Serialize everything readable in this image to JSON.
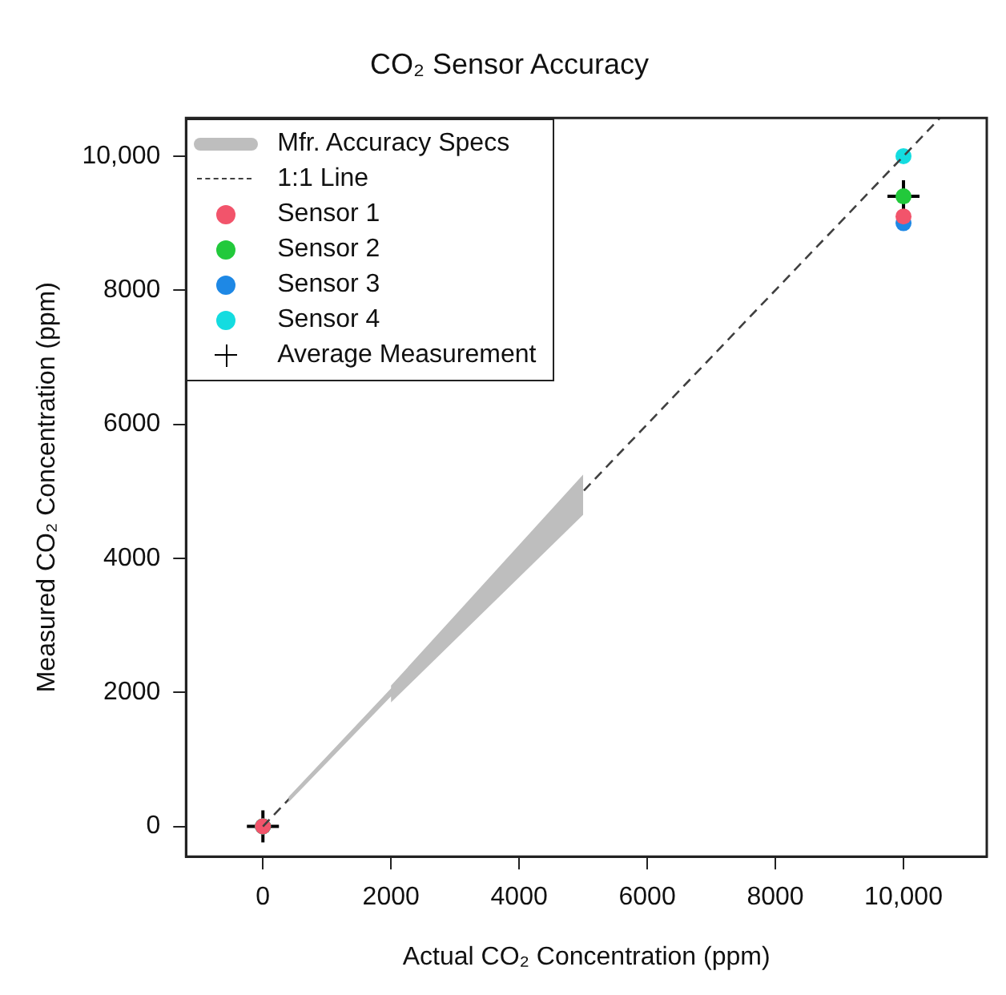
{
  "chart_data": {
    "type": "scatter",
    "title": "CO₂ Sensor Accuracy",
    "xlabel": "Actual CO₂ Concentration (ppm)",
    "ylabel": "Measured CO₂ Concentration (ppm)",
    "xlim": [
      -1200,
      11300
    ],
    "ylim": [
      -450,
      10570
    ],
    "xticks": [
      0,
      2000,
      4000,
      6000,
      8000,
      {
        "value": 10000,
        "label": "10,000"
      }
    ],
    "yticks": [
      0,
      2000,
      4000,
      6000,
      8000,
      {
        "value": 10000,
        "label": "10,000"
      }
    ],
    "grid": false,
    "legend": "top left",
    "marker": "circle",
    "series": [
      {
        "name": "Mfr. Accuracy Specs",
        "type": "line",
        "marker": "none",
        "color": "#bebebe",
        "x": [
          400,
          2000,
          2000,
          5000
        ],
        "values": [
          null,
          null,
          null,
          null
        ],
        "lower": [
          360,
          1940,
          1850,
          4650
        ],
        "upper": [
          440,
          2060,
          2100,
          5250
        ]
      },
      {
        "name": "1:1 Line",
        "type": "line",
        "line_style": "dashed",
        "marker": "none",
        "color": "#404040",
        "x": [
          0,
          10570
        ],
        "values": [
          0,
          10570
        ]
      },
      {
        "name": "Sensor 1",
        "color": "#f2546b",
        "x": [
          0,
          10000
        ],
        "values": [
          0,
          9100
        ]
      },
      {
        "name": "Sensor 2",
        "color": "#22c93b",
        "x": [
          0,
          10000
        ],
        "values": [
          0,
          9400
        ]
      },
      {
        "name": "Sensor 3",
        "color": "#1e88e5",
        "x": [
          0,
          10000
        ],
        "values": [
          0,
          9000
        ]
      },
      {
        "name": "Sensor 4",
        "color": "#14dce0",
        "x": [
          0,
          10000
        ],
        "values": [
          0,
          10000
        ]
      },
      {
        "name": "Average Measurement",
        "marker": "cross",
        "color": "#000000",
        "x": [
          0,
          10000
        ],
        "values": [
          0,
          9400
        ]
      }
    ]
  }
}
